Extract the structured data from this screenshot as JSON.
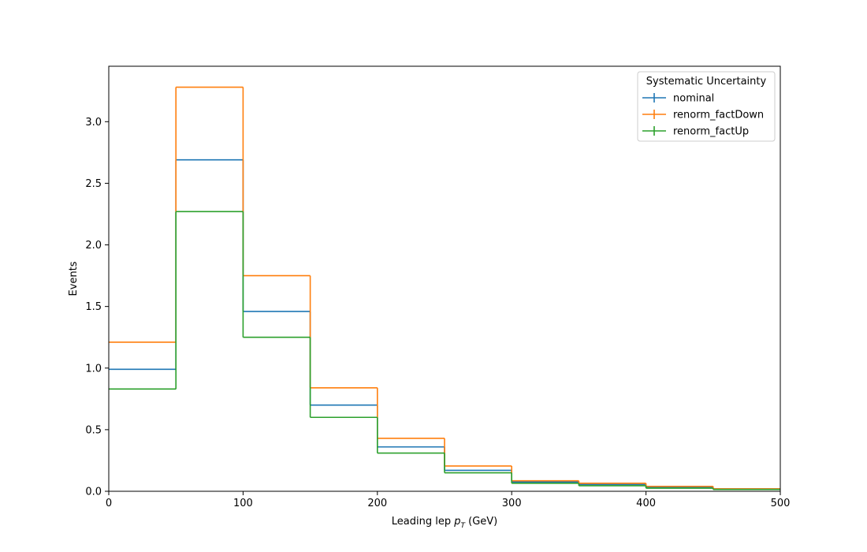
{
  "chart_data": {
    "type": "step-histogram",
    "xlabel_prefix": "Leading lep ",
    "xlabel_symbol": "p",
    "xlabel_subscript": "T",
    "xlabel_suffix": " (GeV)",
    "ylabel": "Events",
    "xlim": [
      0,
      500
    ],
    "ylim": [
      0,
      3.45
    ],
    "x_ticks": [
      0,
      100,
      200,
      300,
      400,
      500
    ],
    "y_ticks": [
      0.0,
      0.5,
      1.0,
      1.5,
      2.0,
      2.5,
      3.0
    ],
    "y_tick_labels": [
      "0.0",
      "0.5",
      "1.0",
      "1.5",
      "2.0",
      "2.5",
      "3.0"
    ],
    "bin_edges": [
      0,
      50,
      100,
      150,
      200,
      250,
      300,
      350,
      400,
      450,
      500
    ],
    "legend": {
      "title": "Systematic Uncertainty",
      "location": "top-right"
    },
    "series": [
      {
        "name": "nominal",
        "color": "#1f77b4",
        "values": [
          0.99,
          2.69,
          1.46,
          0.7,
          0.36,
          0.17,
          0.075,
          0.055,
          0.03,
          0.02
        ]
      },
      {
        "name": "renorm_factDown",
        "color": "#ff7f0e",
        "values": [
          1.21,
          3.28,
          1.75,
          0.84,
          0.43,
          0.205,
          0.085,
          0.065,
          0.04,
          0.02
        ]
      },
      {
        "name": "renorm_factUp",
        "color": "#2ca02c",
        "values": [
          0.83,
          2.27,
          1.25,
          0.6,
          0.31,
          0.15,
          0.065,
          0.045,
          0.025,
          0.015
        ]
      }
    ]
  }
}
